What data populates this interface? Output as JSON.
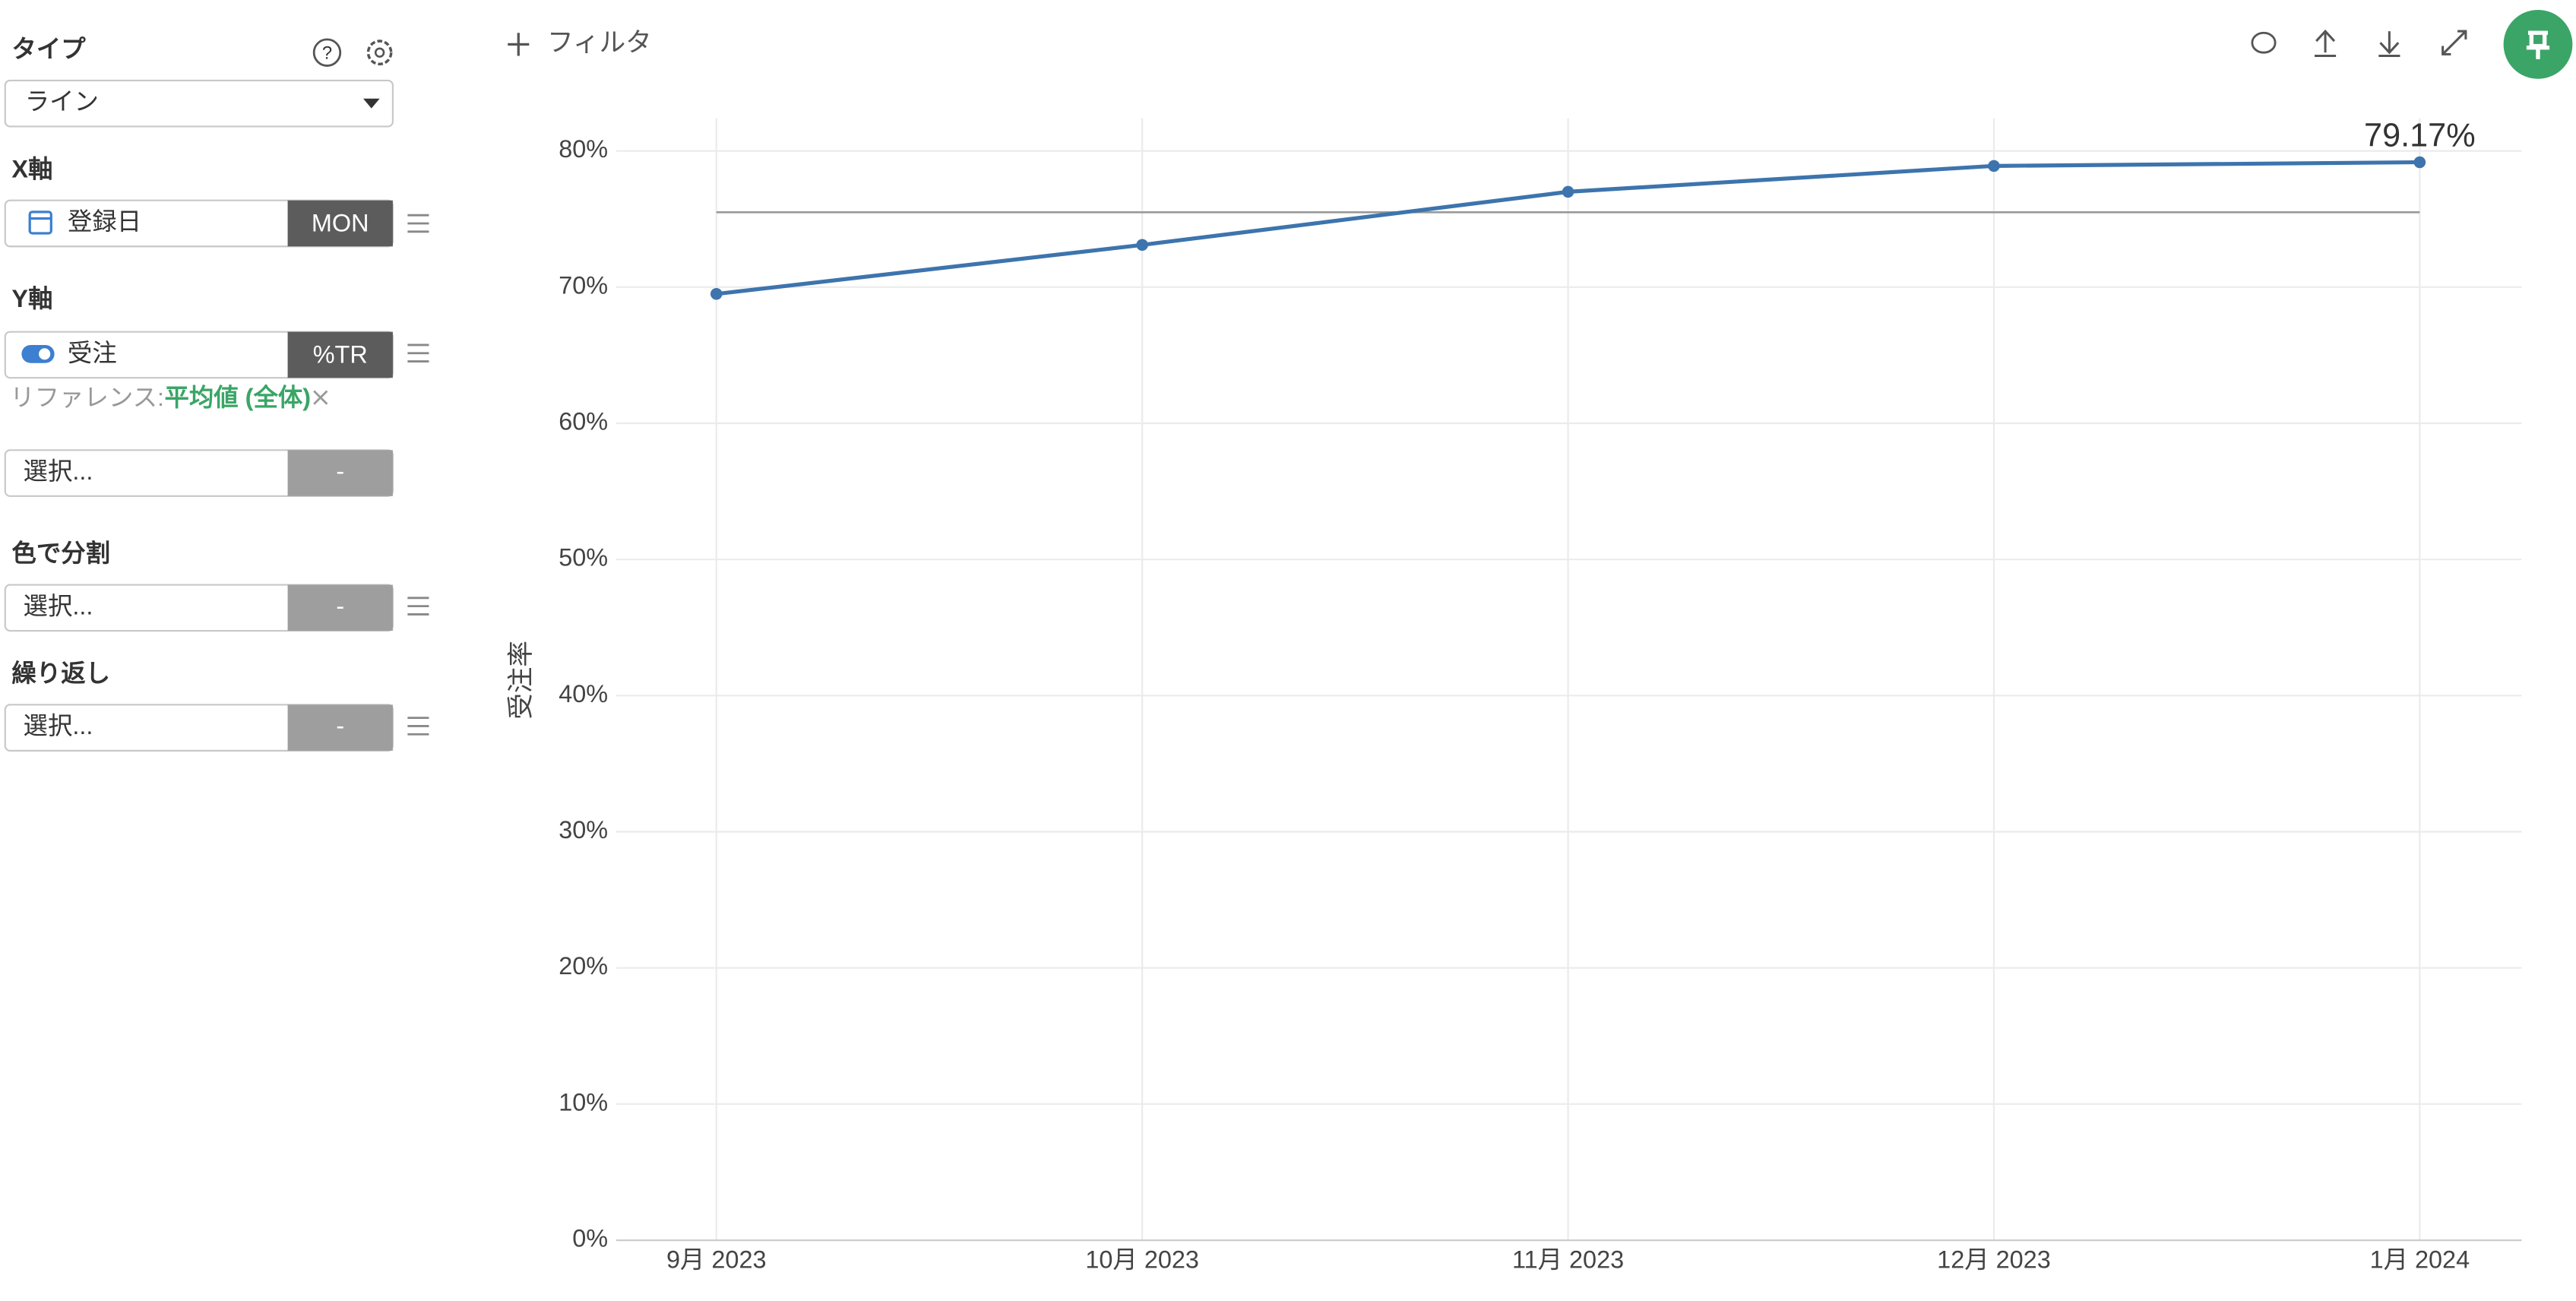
{
  "sidebar": {
    "type_label": "タイプ",
    "type_value": "ライン",
    "x_axis_label": "X軸",
    "x_field": "登録日",
    "x_badge": "MON",
    "y_axis_label": "Y軸",
    "y_field": "受注",
    "y_badge": "%TR",
    "reference_prefix": "リファレンス:",
    "reference_value": "平均値 (全体)",
    "extra_field": "選択...",
    "extra_badge": "-",
    "color_label": "色で分割",
    "color_field": "選択...",
    "color_badge": "-",
    "repeat_label": "繰り返し",
    "repeat_field": "選択...",
    "repeat_badge": "-"
  },
  "toolbar": {
    "filter": "フィルタ"
  },
  "chart_data": {
    "type": "line",
    "y_label": "受注率",
    "categories": [
      "9月 2023",
      "10月 2023",
      "11月 2023",
      "12月 2023",
      "1月 2024"
    ],
    "series": [
      {
        "name": "受注",
        "color": "#3d74ad",
        "values": [
          69.5,
          73.1,
          77.0,
          78.9,
          79.17
        ],
        "value_labels": [
          null,
          null,
          null,
          null,
          "79.17%"
        ]
      }
    ],
    "reference_line": 75.5,
    "reference_color": "#999999",
    "ylim": [
      0,
      82.4
    ],
    "yticks": [
      {
        "value": 0,
        "label": "0%"
      },
      {
        "value": 10,
        "label": "10%"
      },
      {
        "value": 20,
        "label": "20%"
      },
      {
        "value": 30,
        "label": "30%"
      },
      {
        "value": 40,
        "label": "40%"
      },
      {
        "value": 50,
        "label": "50%"
      },
      {
        "value": 60,
        "label": "60%"
      },
      {
        "value": 70,
        "label": "70%"
      },
      {
        "value": 80,
        "label": "80%"
      }
    ],
    "grid": true
  }
}
